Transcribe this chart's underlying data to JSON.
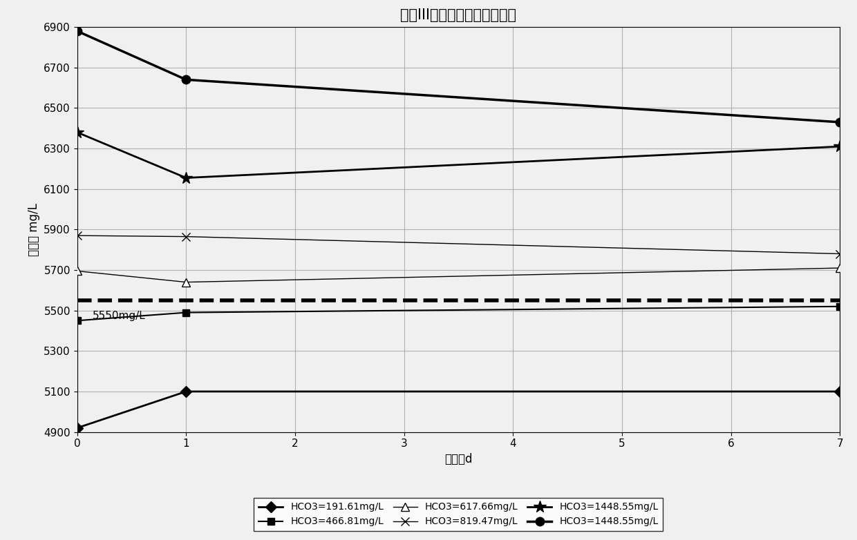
{
  "title": "试验III矿化度随时间变化曲线",
  "xlabel": "时间，d",
  "ylabel": "矿化度 mg/L",
  "xlim": [
    0,
    7
  ],
  "ylim": [
    4900,
    6900
  ],
  "yticks": [
    4900,
    5100,
    5300,
    5500,
    5700,
    5900,
    6100,
    6300,
    6500,
    6700,
    6900
  ],
  "xticks": [
    0,
    1,
    2,
    3,
    4,
    5,
    6,
    7
  ],
  "dashed_line_y": 5550,
  "dashed_line_label": "5550mg/L",
  "series": [
    {
      "label": "HCO3=191.61mg/L",
      "x": [
        0,
        1,
        7
      ],
      "y": [
        4920,
        5100,
        5100
      ],
      "marker": "D",
      "linestyle": "-",
      "color": "#000000",
      "linewidth": 2.0,
      "markersize": 8,
      "markerfacecolor": "#000000"
    },
    {
      "label": "HCO3=466.81mg/L",
      "x": [
        0,
        1,
        7
      ],
      "y": [
        5450,
        5490,
        5520
      ],
      "marker": "s",
      "linestyle": "-",
      "color": "#000000",
      "linewidth": 1.5,
      "markersize": 7,
      "markerfacecolor": "#000000"
    },
    {
      "label": "HCO3=617.66mg/L",
      "x": [
        0,
        1,
        7
      ],
      "y": [
        5695,
        5640,
        5710
      ],
      "marker": "^",
      "linestyle": "-",
      "color": "#000000",
      "linewidth": 1.0,
      "markersize": 8,
      "markerfacecolor": "white"
    },
    {
      "label": "HCO3=819.47mg/L",
      "x": [
        0,
        1,
        7
      ],
      "y": [
        5870,
        5865,
        5780
      ],
      "marker": "x",
      "linestyle": "-",
      "color": "#000000",
      "linewidth": 1.0,
      "markersize": 9,
      "markerfacecolor": "#000000"
    },
    {
      "label": "HCO3=1448.55mg/L",
      "x": [
        0,
        1,
        7
      ],
      "y": [
        6380,
        6155,
        6310
      ],
      "marker": "*",
      "linestyle": "-",
      "color": "#000000",
      "linewidth": 2.0,
      "markersize": 13,
      "markerfacecolor": "#000000"
    },
    {
      "label": "HCO3=1448.55mg/L",
      "x": [
        0,
        1,
        7
      ],
      "y": [
        6880,
        6640,
        6430
      ],
      "marker": "o",
      "linestyle": "-",
      "color": "#000000",
      "linewidth": 2.5,
      "markersize": 9,
      "markerfacecolor": "#000000"
    }
  ],
  "legend_entries": [
    {
      "label": "HCO3=191.61mg/L",
      "marker": "D",
      "linestyle": "-"
    },
    {
      "label": "HCO3=466.81mg/L",
      "marker": "s",
      "linestyle": "-"
    },
    {
      "label": "HCO3=617.66mg/L",
      "marker": "^",
      "linestyle": "-"
    },
    {
      "label": "HCO3=819.47mg/L",
      "marker": "x",
      "linestyle": "-"
    },
    {
      "label": "HCO3=1448.55mg/L",
      "marker": "*",
      "linestyle": "-"
    },
    {
      "label": "HCO3=1448.55mg/L",
      "marker": "o",
      "linestyle": "-"
    }
  ],
  "background_color": "#f0f0f0",
  "grid_color": "#aaaaaa",
  "title_fontsize": 15,
  "axis_fontsize": 12,
  "tick_fontsize": 11,
  "legend_fontsize": 10
}
